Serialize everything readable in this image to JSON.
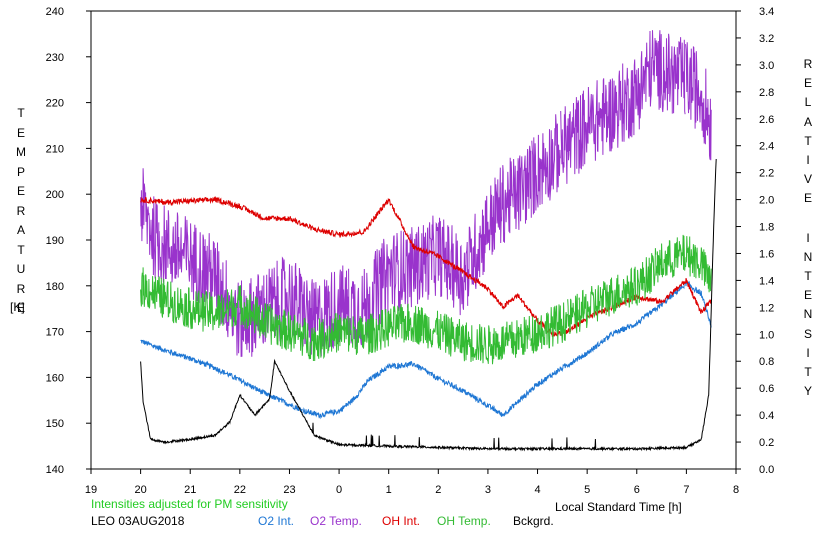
{
  "chart_data": {
    "type": "line",
    "title": "",
    "xlabel": "Local Standard Time [h]",
    "ylabel_left": "TEMPERATURE",
    "ylabel_left_unit": "[K]",
    "ylabel_right": "RELATIVE INTENSITY",
    "note": "Intensities adjusted for PM sensitivity",
    "station_date": "LEO 03AUG2018",
    "x_ticks": [
      "19",
      "20",
      "21",
      "22",
      "23",
      "0",
      "1",
      "2",
      "3",
      "4",
      "5",
      "6",
      "7",
      "8"
    ],
    "xlim": [
      19,
      32
    ],
    "ylim_left": [
      140,
      240
    ],
    "y_ticks_left": [
      "140",
      "150",
      "160",
      "170",
      "180",
      "190",
      "200",
      "210",
      "220",
      "230",
      "240"
    ],
    "ylim_right": [
      0.0,
      3.4
    ],
    "y_ticks_right": [
      "0.0",
      "0.2",
      "0.4",
      "0.6",
      "0.8",
      "1.0",
      "1.2",
      "1.4",
      "1.6",
      "1.8",
      "2.0",
      "2.2",
      "2.4",
      "2.6",
      "2.8",
      "3.0",
      "3.2",
      "3.4"
    ],
    "grid": false,
    "legend_position": "bottom",
    "series": [
      {
        "name": "O2 Int.",
        "color": "#1f77d4",
        "axis": "right",
        "noise": 0.02,
        "x": [
          20.0,
          20.5,
          21.0,
          21.5,
          22.0,
          22.5,
          23.0,
          23.3,
          23.6,
          24.0,
          24.3,
          24.6,
          25.0,
          25.5,
          26.0,
          26.5,
          27.0,
          27.3,
          27.7,
          28.0,
          28.5,
          29.0,
          29.5,
          30.0,
          30.5,
          31.0,
          31.3,
          31.5
        ],
        "y": [
          0.95,
          0.88,
          0.82,
          0.75,
          0.66,
          0.56,
          0.48,
          0.43,
          0.4,
          0.43,
          0.52,
          0.66,
          0.76,
          0.78,
          0.67,
          0.58,
          0.47,
          0.4,
          0.53,
          0.63,
          0.75,
          0.86,
          1.0,
          1.08,
          1.22,
          1.38,
          1.3,
          1.06
        ]
      },
      {
        "name": "O2 Temp.",
        "color": "#9933cc",
        "axis": "left",
        "noise": 9,
        "x": [
          20.0,
          20.3,
          21.0,
          21.5,
          22.0,
          22.5,
          23.0,
          23.5,
          24.0,
          24.5,
          25.0,
          25.5,
          26.0,
          26.5,
          27.0,
          27.3,
          27.6,
          28.0,
          28.5,
          29.0,
          29.5,
          30.0,
          30.3,
          30.7,
          31.0,
          31.3,
          31.5
        ],
        "y": [
          198,
          190,
          186,
          182,
          172,
          175,
          178,
          172,
          176,
          175,
          183,
          184,
          187,
          182,
          193,
          198,
          200,
          205,
          210,
          215,
          218,
          222,
          228,
          226,
          225,
          222,
          215
        ]
      },
      {
        "name": "OH Int.",
        "color": "#dd0000",
        "axis": "right",
        "noise": 0.02,
        "x": [
          20.0,
          20.5,
          21.0,
          21.5,
          22.0,
          22.5,
          23.0,
          23.5,
          24.0,
          24.5,
          25.0,
          25.5,
          26.0,
          26.5,
          27.0,
          27.3,
          27.6,
          28.0,
          28.3,
          28.6,
          29.0,
          29.5,
          30.0,
          30.5,
          31.0,
          31.3,
          31.5
        ],
        "y": [
          2.0,
          1.98,
          1.99,
          2.0,
          1.95,
          1.86,
          1.86,
          1.78,
          1.74,
          1.76,
          2.0,
          1.65,
          1.58,
          1.46,
          1.34,
          1.2,
          1.29,
          1.1,
          1.0,
          1.02,
          1.12,
          1.2,
          1.28,
          1.24,
          1.4,
          1.16,
          1.25
        ]
      },
      {
        "name": "OH Temp.",
        "color": "#33bb33",
        "axis": "left",
        "noise": 4.5,
        "x": [
          20.0,
          20.5,
          21.0,
          21.5,
          22.0,
          22.5,
          23.0,
          23.5,
          24.0,
          24.5,
          25.0,
          25.5,
          26.0,
          26.5,
          27.0,
          27.5,
          28.0,
          28.5,
          29.0,
          29.5,
          30.0,
          30.5,
          31.0,
          31.3,
          31.5
        ],
        "y": [
          180,
          177,
          175,
          174,
          176,
          172,
          170,
          168,
          170,
          169,
          171,
          172,
          170,
          168,
          167,
          168,
          170,
          172,
          175,
          178,
          180,
          185,
          187,
          185,
          180
        ]
      },
      {
        "name": "Bckgrd.",
        "color": "#000000",
        "axis": "right",
        "noise": 0.008,
        "x": [
          20.0,
          20.05,
          20.2,
          20.5,
          21.0,
          21.5,
          21.8,
          22.0,
          22.3,
          22.6,
          22.7,
          23.0,
          23.5,
          24.0,
          25.0,
          26.0,
          27.0,
          28.0,
          29.0,
          30.0,
          31.0,
          31.3,
          31.45,
          31.55,
          31.6
        ],
        "y": [
          0.8,
          0.5,
          0.22,
          0.2,
          0.22,
          0.25,
          0.35,
          0.55,
          0.4,
          0.52,
          0.8,
          0.58,
          0.25,
          0.18,
          0.17,
          0.16,
          0.15,
          0.15,
          0.15,
          0.15,
          0.16,
          0.22,
          0.55,
          1.8,
          2.3
        ]
      }
    ]
  },
  "legend_items": [
    "O2 Int.",
    "O2 Temp.",
    "OH Int.",
    "OH Temp.",
    "Bckgrd."
  ]
}
